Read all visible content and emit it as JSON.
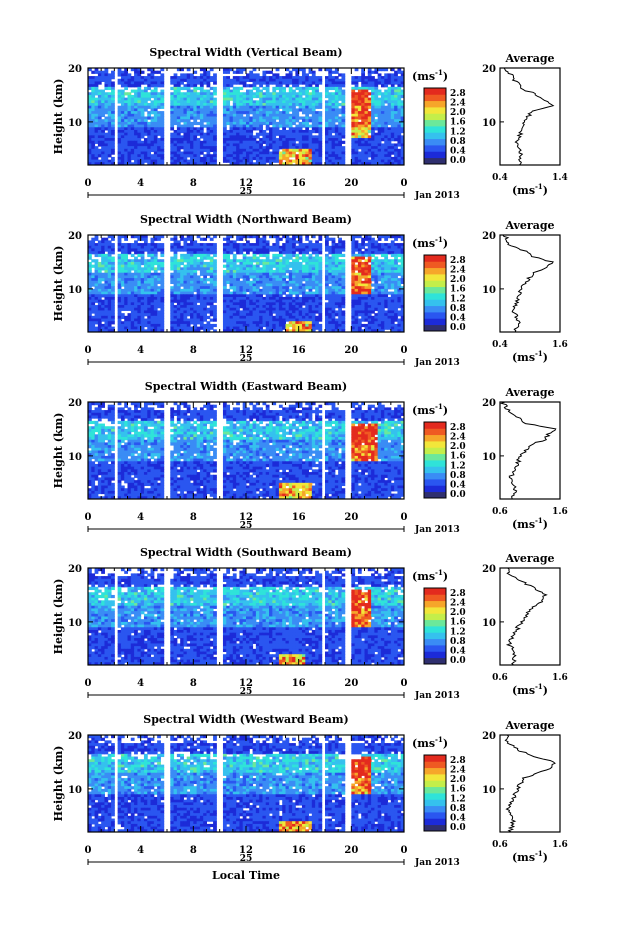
{
  "panels": [
    {
      "title": "Spectral Width (Vertical Beam)",
      "avg_xticks": [
        "0.4",
        "1.4"
      ],
      "avg_x": [
        0.4,
        1.4
      ]
    },
    {
      "title": "Spectral Width (Northward Beam)",
      "avg_xticks": [
        "0.4",
        "1.6"
      ],
      "avg_x": [
        0.4,
        1.6
      ]
    },
    {
      "title": "Spectral Width (Eastward Beam)",
      "avg_xticks": [
        "0.6",
        "1.6"
      ],
      "avg_x": [
        0.6,
        1.6
      ]
    },
    {
      "title": "Spectral Width (Southward Beam)",
      "avg_xticks": [
        "0.6",
        "1.6"
      ],
      "avg_x": [
        0.6,
        1.6
      ]
    },
    {
      "title": "Spectral Width (Westward Beam)",
      "avg_xticks": [
        "0.6",
        "1.6"
      ],
      "avg_x": [
        0.6,
        1.6
      ]
    }
  ],
  "labels": {
    "ylabel": "Height (km)",
    "yticks": [
      "20",
      "10"
    ],
    "xticks": [
      "0",
      "4",
      "8",
      "12",
      "16",
      "20",
      "0"
    ],
    "date_day": "25",
    "date_month": "Jan 2013",
    "xlabel": "Local Time",
    "avg_title": "Average",
    "avg_yticks": [
      "20",
      "10"
    ],
    "cb_unit": "(ms",
    "cb_unit_exp": "-1",
    "cb_unit_close": ")",
    "cb_ticks": [
      "2.8",
      "2.4",
      "2.0",
      "1.6",
      "1.2",
      "0.8",
      "0.4",
      "0.0"
    ],
    "avg_xunit": "(ms",
    "avg_xunit_exp": "-1",
    "avg_xunit_close": ")"
  },
  "colors": {
    "colorbar": [
      "#2f2f6f",
      "#1c2bd8",
      "#2a56f0",
      "#3a8cf5",
      "#35c1ee",
      "#2fe3d9",
      "#6be89a",
      "#c4ee4a",
      "#f2e63a",
      "#f6a62a",
      "#ef5a22",
      "#e32a1e"
    ]
  },
  "chart_data": [
    {
      "type": "heatmap",
      "title": "Spectral Width (Vertical Beam)",
      "xlabel": "Local Time",
      "ylabel": "Height (km)",
      "xlim": [
        0,
        24
      ],
      "ylim": [
        2,
        20
      ],
      "colorbar_range": [
        0.0,
        3.0
      ],
      "no_data_time_gaps": [
        [
          0.0,
          0.1
        ],
        [
          1.9,
          2.3
        ],
        [
          5.8,
          6.2
        ],
        [
          9.8,
          10.2
        ],
        [
          17.7,
          18.1
        ],
        [
          19.6,
          20.0
        ]
      ],
      "high_width_regions": [
        {
          "time": [
            20.0,
            21.5
          ],
          "height": [
            7,
            16
          ]
        },
        {
          "time": [
            14.5,
            17.0
          ],
          "height": [
            2,
            5
          ]
        }
      ],
      "average_profile": {
        "type": "line",
        "xlabel": "(ms-1)",
        "xlim": [
          0.4,
          1.4
        ],
        "ylim": [
          2,
          20
        ],
        "height_km": [
          2,
          4,
          6,
          8,
          10,
          12,
          13,
          14,
          15,
          16,
          17,
          18,
          20
        ],
        "value": [
          0.72,
          0.75,
          0.68,
          0.74,
          0.78,
          0.95,
          1.3,
          1.12,
          1.02,
          0.8,
          0.7,
          0.62,
          0.5
        ]
      }
    },
    {
      "type": "heatmap",
      "title": "Spectral Width (Northward Beam)",
      "xlabel": "Local Time",
      "ylabel": "Height (km)",
      "xlim": [
        0,
        24
      ],
      "ylim": [
        2,
        20
      ],
      "colorbar_range": [
        0.0,
        3.0
      ],
      "no_data_time_gaps": [
        [
          0.0,
          0.1
        ],
        [
          1.9,
          2.3
        ],
        [
          5.8,
          6.2
        ],
        [
          9.8,
          10.2
        ],
        [
          17.7,
          18.1
        ],
        [
          19.6,
          20.0
        ]
      ],
      "high_width_regions": [
        {
          "time": [
            20.0,
            21.5
          ],
          "height": [
            9,
            16
          ]
        },
        {
          "time": [
            15.0,
            17.0
          ],
          "height": [
            2,
            4
          ]
        }
      ],
      "average_profile": {
        "type": "line",
        "xlabel": "(ms-1)",
        "xlim": [
          0.4,
          1.6
        ],
        "ylim": [
          2,
          20
        ],
        "height_km": [
          2,
          4,
          6,
          8,
          10,
          12,
          13,
          14,
          15,
          16,
          17,
          18,
          19,
          20
        ],
        "value": [
          0.7,
          0.78,
          0.66,
          0.75,
          0.82,
          0.98,
          1.1,
          1.3,
          1.45,
          1.05,
          0.9,
          0.6,
          0.55,
          0.5
        ]
      }
    },
    {
      "type": "heatmap",
      "title": "Spectral Width (Eastward Beam)",
      "xlabel": "Local Time",
      "ylabel": "Height (km)",
      "xlim": [
        0,
        24
      ],
      "ylim": [
        2,
        20
      ],
      "colorbar_range": [
        0.0,
        3.0
      ],
      "no_data_time_gaps": [
        [
          0.0,
          0.1
        ],
        [
          1.9,
          2.3
        ],
        [
          5.8,
          6.2
        ],
        [
          9.8,
          10.2
        ],
        [
          17.7,
          18.1
        ],
        [
          19.6,
          20.0
        ]
      ],
      "high_width_regions": [
        {
          "time": [
            20.0,
            22.0
          ],
          "height": [
            9,
            16
          ]
        },
        {
          "time": [
            14.5,
            17.0
          ],
          "height": [
            2,
            5
          ]
        }
      ],
      "average_profile": {
        "type": "line",
        "xlabel": "(ms-1)",
        "xlim": [
          0.6,
          1.6
        ],
        "ylim": [
          2,
          20
        ],
        "height_km": [
          2,
          4,
          6,
          8,
          10,
          12,
          13,
          14,
          15,
          16,
          17,
          18,
          19,
          20
        ],
        "value": [
          0.8,
          0.85,
          0.78,
          0.86,
          0.95,
          1.1,
          1.35,
          1.4,
          1.55,
          1.05,
          0.9,
          0.75,
          0.7,
          0.65
        ]
      }
    },
    {
      "type": "heatmap",
      "title": "Spectral Width (Southward Beam)",
      "xlabel": "Local Time",
      "ylabel": "Height (km)",
      "xlim": [
        0,
        24
      ],
      "ylim": [
        2,
        20
      ],
      "colorbar_range": [
        0.0,
        3.0
      ],
      "no_data_time_gaps": [
        [
          0.0,
          0.1
        ],
        [
          1.9,
          2.3
        ],
        [
          5.8,
          6.2
        ],
        [
          9.8,
          10.2
        ],
        [
          17.7,
          18.1
        ],
        [
          19.6,
          20.0
        ]
      ],
      "high_width_regions": [
        {
          "time": [
            20.0,
            21.5
          ],
          "height": [
            9,
            16
          ]
        },
        {
          "time": [
            14.5,
            16.5
          ],
          "height": [
            2,
            4
          ]
        }
      ],
      "average_profile": {
        "type": "line",
        "xlabel": "(ms-1)",
        "xlim": [
          0.6,
          1.6
        ],
        "ylim": [
          2,
          20
        ],
        "height_km": [
          2,
          4,
          6,
          8,
          10,
          12,
          13,
          14,
          15,
          16,
          17,
          18,
          19,
          20
        ],
        "value": [
          0.82,
          0.85,
          0.75,
          0.85,
          0.95,
          1.1,
          1.2,
          1.3,
          1.35,
          1.22,
          1.05,
          0.85,
          0.75,
          0.7
        ]
      }
    },
    {
      "type": "heatmap",
      "title": "Spectral Width (Westward Beam)",
      "xlabel": "Local Time",
      "ylabel": "Height (km)",
      "xlim": [
        0,
        24
      ],
      "ylim": [
        2,
        20
      ],
      "colorbar_range": [
        0.0,
        3.0
      ],
      "no_data_time_gaps": [
        [
          0.0,
          0.1
        ],
        [
          1.9,
          2.3
        ],
        [
          5.8,
          6.2
        ],
        [
          9.8,
          10.2
        ],
        [
          17.7,
          18.1
        ],
        [
          19.6,
          20.0
        ]
      ],
      "high_width_regions": [
        {
          "time": [
            20.0,
            21.5
          ],
          "height": [
            9,
            16
          ]
        },
        {
          "time": [
            14.5,
            17.0
          ],
          "height": [
            2,
            4
          ]
        }
      ],
      "average_profile": {
        "type": "line",
        "xlabel": "(ms-1)",
        "xlim": [
          0.6,
          1.6
        ],
        "ylim": [
          2,
          20
        ],
        "height_km": [
          2,
          4,
          6,
          8,
          10,
          12,
          13,
          14,
          15,
          16,
          17,
          18,
          19,
          20
        ],
        "value": [
          0.78,
          0.82,
          0.74,
          0.8,
          0.9,
          1.0,
          1.25,
          1.45,
          1.5,
          1.2,
          0.95,
          0.8,
          0.72,
          0.7
        ]
      }
    }
  ]
}
